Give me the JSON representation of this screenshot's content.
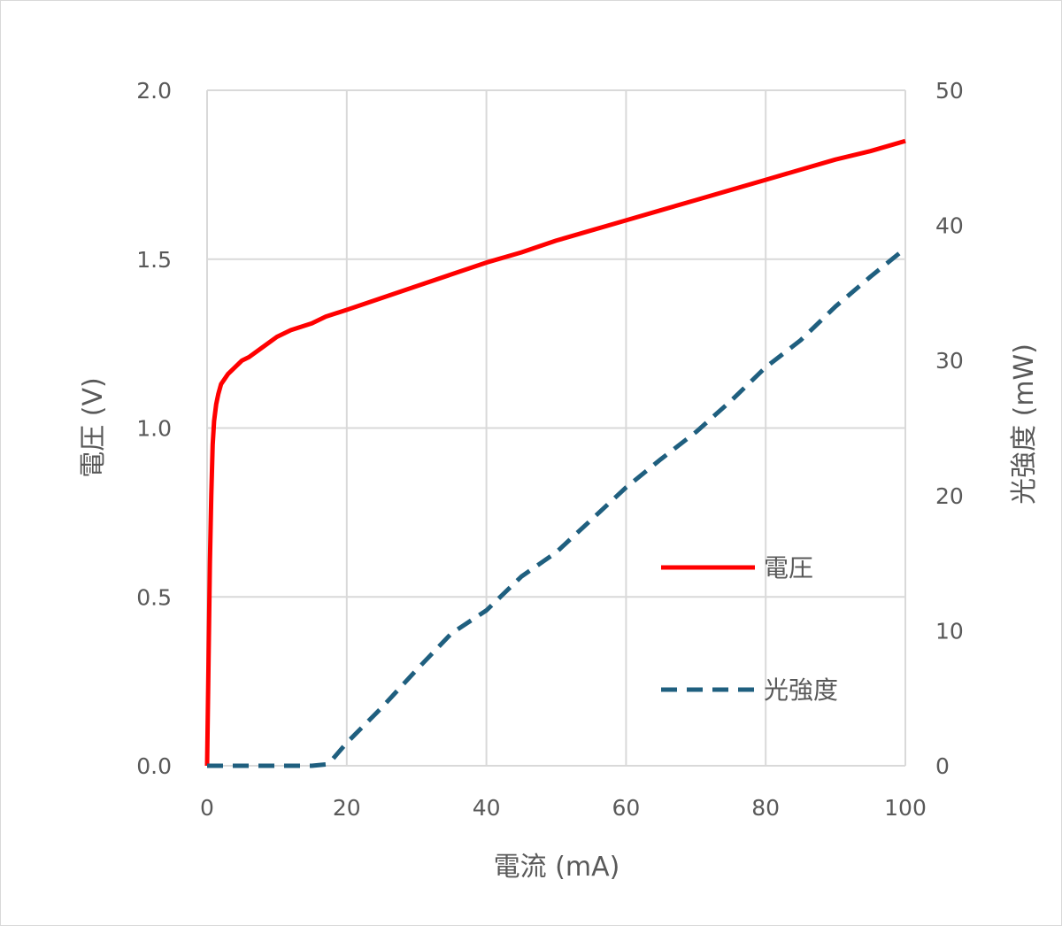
{
  "chart_data": {
    "type": "line",
    "title": "",
    "xlabel": "電流 (mA)",
    "ylabel_left": "電圧 (V)",
    "ylabel_right": "光強度 (mW)",
    "xlim": [
      0,
      100
    ],
    "ylim_left": [
      0,
      2.0
    ],
    "ylim_right": [
      0,
      50
    ],
    "x_ticks": [
      "0",
      "20",
      "40",
      "60",
      "80",
      "100"
    ],
    "y_left_ticks": [
      "0.0",
      "0.5",
      "1.0",
      "1.5",
      "2.0"
    ],
    "y_right_ticks": [
      "0",
      "10",
      "20",
      "30",
      "40",
      "50"
    ],
    "grid": true,
    "legend_position": "lower-right",
    "series": [
      {
        "name": "電圧",
        "axis": "left",
        "color": "#ff0000",
        "style": "solid",
        "x": [
          0,
          0.2,
          0.4,
          0.6,
          0.8,
          1.0,
          1.3,
          1.6,
          2.0,
          3.0,
          4.0,
          5.0,
          6.0,
          8.0,
          10.0,
          12.0,
          15.0,
          17.0,
          20.0,
          25.0,
          30.0,
          35.0,
          40.0,
          45.0,
          50.0,
          55.0,
          60.0,
          65.0,
          70.0,
          75.0,
          80.0,
          85.0,
          90.0,
          95.0,
          100.0
        ],
        "values": [
          0.0,
          0.3,
          0.6,
          0.8,
          0.95,
          1.02,
          1.07,
          1.1,
          1.13,
          1.16,
          1.18,
          1.2,
          1.21,
          1.24,
          1.27,
          1.29,
          1.31,
          1.33,
          1.35,
          1.385,
          1.42,
          1.455,
          1.49,
          1.52,
          1.555,
          1.585,
          1.615,
          1.645,
          1.675,
          1.705,
          1.735,
          1.765,
          1.795,
          1.82,
          1.85
        ]
      },
      {
        "name": "光強度",
        "axis": "right",
        "color": "#1f5f7f",
        "style": "dashed",
        "x": [
          0,
          5,
          10,
          15,
          17,
          18,
          20,
          25,
          30,
          35,
          40,
          45,
          50,
          55,
          60,
          65,
          70,
          75,
          80,
          85,
          90,
          95,
          100
        ],
        "values": [
          0,
          0,
          0,
          0,
          0.1,
          0.5,
          1.7,
          4.3,
          7.1,
          9.8,
          11.5,
          14.0,
          15.8,
          18.2,
          20.6,
          22.7,
          24.7,
          27.0,
          29.5,
          31.5,
          34.0,
          36.2,
          38.3
        ]
      }
    ]
  }
}
